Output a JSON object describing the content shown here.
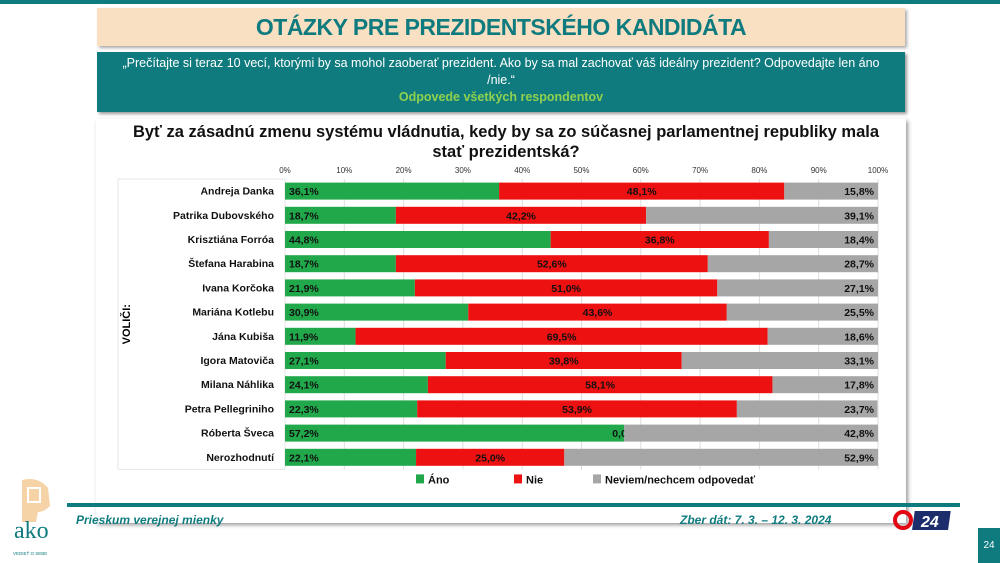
{
  "header": {
    "title": "OTÁZKY PRE PREZIDENTSKÉHO KANDIDÁTA",
    "question": "„Prečítajte si teraz 10 vecí, ktorými by sa mohol zaoberať prezident. Ako by sa mal zachovať váš ideálny prezident? Odpovedajte len áno /nie.“",
    "subtitle": "Odpovede všetkých respondentov"
  },
  "chart_data": {
    "type": "bar",
    "stacked": true,
    "orientation": "horizontal",
    "title": "Byť za zásadnú zmenu systému vládnutia, kedy by sa zo súčasnej  parlamentnej republiky mala stať prezidentská?",
    "ylabel": "VOLIČI:",
    "xlim": [
      0,
      100
    ],
    "x_ticks": [
      "0%",
      "10%",
      "20%",
      "30%",
      "40%",
      "50%",
      "60%",
      "70%",
      "80%",
      "90%",
      "100%"
    ],
    "categories": [
      "Andreja Danka",
      "Patrika Dubovského",
      "Krisztiána Forróa",
      "Štefana Harabina",
      "Ivana Korčoka",
      "Mariána Kotlebu",
      "Jána Kubiša",
      "Igora Matoviča",
      "Milana Náhlika",
      "Petra Pellegriniho",
      "Róberta Šveca",
      "Nerozhodnutí"
    ],
    "series": [
      {
        "name": "Áno",
        "color": "#21a84a",
        "values": [
          36.1,
          18.7,
          44.8,
          18.7,
          21.9,
          30.9,
          11.9,
          27.1,
          24.1,
          22.3,
          57.2,
          22.1
        ]
      },
      {
        "name": "Nie",
        "color": "#ee1111",
        "values": [
          48.1,
          42.2,
          36.8,
          52.6,
          51.0,
          43.6,
          69.5,
          39.8,
          58.1,
          53.9,
          0.0,
          25.0
        ]
      },
      {
        "name": "Neviem/nechcem odpovedať",
        "color": "#a6a6a6",
        "values": [
          15.8,
          39.1,
          18.4,
          28.7,
          27.1,
          25.5,
          18.6,
          33.1,
          17.8,
          23.7,
          42.8,
          52.9
        ]
      }
    ],
    "legend": "bottom"
  },
  "footer": {
    "survey": "Prieskum verejnej mienky",
    "dates": "Zber dát: 7. 3. – 12. 3. 2024",
    "page": "24",
    "logo_ako": "ako",
    "logo_ako_tag": "VEDIEŤ O SEBE",
    "logo_tv": "24"
  }
}
